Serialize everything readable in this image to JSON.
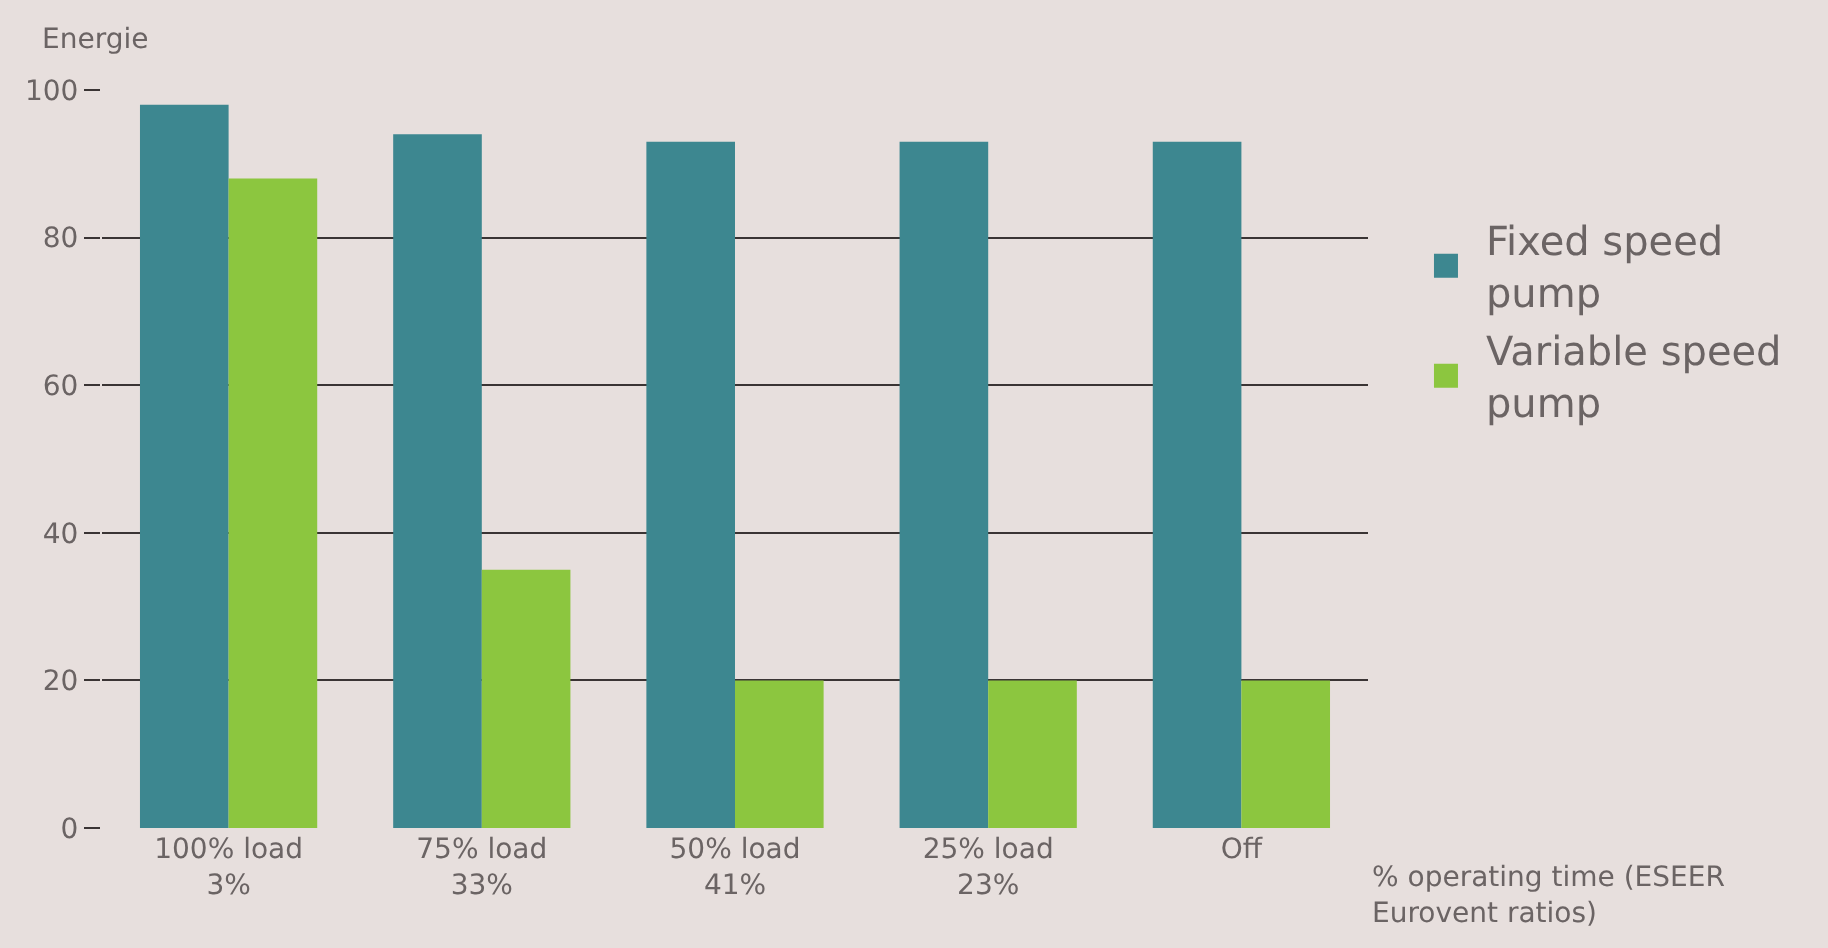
{
  "chart_data": {
    "type": "bar",
    "ylabel": "Energie",
    "xlabel": "% operating time (ESEER\nEurovent ratios)",
    "categories": [
      "100% load\n3%",
      "75% load\n33%",
      "50% load\n41%",
      "25% load\n23%",
      "Off"
    ],
    "series": [
      {
        "name": "Fixed speed\npump",
        "color": "#3d8790",
        "values": [
          98,
          94,
          93,
          93,
          93
        ]
      },
      {
        "name": "Variable speed\npump",
        "color": "#8cc63f",
        "values": [
          88,
          35,
          20,
          20,
          20
        ]
      }
    ],
    "ylim": [
      0,
      100
    ],
    "yticks": [
      0,
      20,
      40,
      60,
      80,
      100
    ],
    "grid": "y",
    "legend": "right"
  }
}
